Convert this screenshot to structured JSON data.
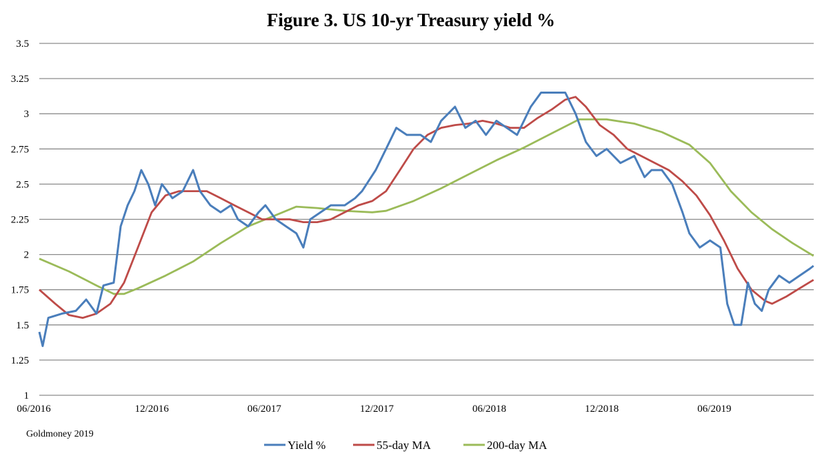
{
  "chart_data": {
    "type": "line",
    "title": "Figure 3. US 10-yr Treasury yield %",
    "xlabel": "",
    "ylabel": "",
    "x_units": "months since 06/2016",
    "xlim": [
      0,
      41.3
    ],
    "ylim": [
      1,
      3.5
    ],
    "yticks": [
      1,
      1.25,
      1.5,
      1.75,
      2,
      2.25,
      2.5,
      2.75,
      3,
      3.25,
      3.5
    ],
    "ytick_labels": [
      "1",
      "1.25",
      "1.5",
      "1.75",
      "2",
      "2.25",
      "2.5",
      "2.75",
      "3",
      "3.25",
      "3.5"
    ],
    "xticks": [
      0,
      6,
      12,
      18,
      24,
      30,
      36
    ],
    "xtick_labels": [
      "06/2016",
      "12/2016",
      "06/2017",
      "12/2017",
      "06/2018",
      "12/2018",
      "06/2019"
    ],
    "grid": "horizontal",
    "legend_position": "bottom-center",
    "source": "Goldmoney 2019",
    "series": [
      {
        "name": "Yield %",
        "color": "#4a7ebb",
        "points": [
          [
            0,
            1.45
          ],
          [
            0.18,
            1.35
          ],
          [
            0.48,
            1.55
          ],
          [
            1.21,
            1.58
          ],
          [
            1.95,
            1.6
          ],
          [
            2.5,
            1.68
          ],
          [
            3.05,
            1.58
          ],
          [
            3.42,
            1.78
          ],
          [
            3.97,
            1.8
          ],
          [
            4.34,
            2.2
          ],
          [
            4.71,
            2.35
          ],
          [
            5.07,
            2.45
          ],
          [
            5.44,
            2.6
          ],
          [
            5.81,
            2.5
          ],
          [
            6.18,
            2.35
          ],
          [
            6.54,
            2.5
          ],
          [
            7.1,
            2.4
          ],
          [
            7.65,
            2.45
          ],
          [
            8.2,
            2.6
          ],
          [
            8.57,
            2.45
          ],
          [
            9.12,
            2.35
          ],
          [
            9.67,
            2.3
          ],
          [
            10.22,
            2.35
          ],
          [
            10.59,
            2.25
          ],
          [
            11.14,
            2.2
          ],
          [
            11.69,
            2.3
          ],
          [
            12.06,
            2.35
          ],
          [
            12.61,
            2.25
          ],
          [
            13.16,
            2.2
          ],
          [
            13.71,
            2.15
          ],
          [
            14.08,
            2.05
          ],
          [
            14.45,
            2.25
          ],
          [
            15.0,
            2.3
          ],
          [
            15.55,
            2.35
          ],
          [
            16.29,
            2.35
          ],
          [
            16.84,
            2.4
          ],
          [
            17.21,
            2.45
          ],
          [
            17.94,
            2.6
          ],
          [
            18.49,
            2.75
          ],
          [
            19.04,
            2.9
          ],
          [
            19.6,
            2.85
          ],
          [
            20.33,
            2.85
          ],
          [
            20.88,
            2.8
          ],
          [
            21.43,
            2.95
          ],
          [
            22.17,
            3.05
          ],
          [
            22.72,
            2.9
          ],
          [
            23.27,
            2.95
          ],
          [
            23.82,
            2.85
          ],
          [
            24.38,
            2.95
          ],
          [
            24.93,
            2.9
          ],
          [
            25.48,
            2.85
          ],
          [
            26.21,
            3.05
          ],
          [
            26.76,
            3.15
          ],
          [
            27.32,
            3.15
          ],
          [
            28.05,
            3.15
          ],
          [
            28.6,
            3.0
          ],
          [
            29.15,
            2.8
          ],
          [
            29.71,
            2.7
          ],
          [
            30.26,
            2.75
          ],
          [
            30.99,
            2.65
          ],
          [
            31.73,
            2.7
          ],
          [
            32.28,
            2.55
          ],
          [
            32.65,
            2.6
          ],
          [
            33.2,
            2.6
          ],
          [
            33.75,
            2.5
          ],
          [
            34.3,
            2.3
          ],
          [
            34.67,
            2.15
          ],
          [
            35.22,
            2.05
          ],
          [
            35.77,
            2.1
          ],
          [
            36.32,
            2.05
          ],
          [
            36.69,
            1.65
          ],
          [
            37.06,
            1.5
          ],
          [
            37.43,
            1.5
          ],
          [
            37.79,
            1.8
          ],
          [
            38.16,
            1.65
          ],
          [
            38.53,
            1.6
          ],
          [
            38.9,
            1.75
          ],
          [
            39.45,
            1.85
          ],
          [
            40.0,
            1.8
          ],
          [
            40.55,
            1.85
          ],
          [
            41.1,
            1.9
          ],
          [
            41.29,
            1.92
          ]
        ]
      },
      {
        "name": "55-day MA",
        "color": "#be4b48",
        "points": [
          [
            0,
            1.75
          ],
          [
            0.85,
            1.65
          ],
          [
            1.58,
            1.57
          ],
          [
            2.32,
            1.55
          ],
          [
            3.05,
            1.58
          ],
          [
            3.79,
            1.65
          ],
          [
            4.52,
            1.8
          ],
          [
            5.26,
            2.05
          ],
          [
            5.99,
            2.3
          ],
          [
            6.73,
            2.42
          ],
          [
            7.46,
            2.45
          ],
          [
            8.2,
            2.45
          ],
          [
            8.93,
            2.45
          ],
          [
            9.67,
            2.4
          ],
          [
            10.4,
            2.35
          ],
          [
            11.14,
            2.3
          ],
          [
            11.88,
            2.25
          ],
          [
            12.61,
            2.25
          ],
          [
            13.35,
            2.25
          ],
          [
            14.08,
            2.23
          ],
          [
            14.82,
            2.23
          ],
          [
            15.55,
            2.25
          ],
          [
            16.29,
            2.3
          ],
          [
            17.02,
            2.35
          ],
          [
            17.76,
            2.38
          ],
          [
            18.49,
            2.45
          ],
          [
            19.23,
            2.6
          ],
          [
            19.96,
            2.75
          ],
          [
            20.7,
            2.85
          ],
          [
            21.43,
            2.9
          ],
          [
            22.17,
            2.92
          ],
          [
            22.9,
            2.93
          ],
          [
            23.64,
            2.95
          ],
          [
            24.38,
            2.93
          ],
          [
            25.11,
            2.9
          ],
          [
            25.85,
            2.9
          ],
          [
            26.58,
            2.97
          ],
          [
            27.32,
            3.03
          ],
          [
            28.05,
            3.1
          ],
          [
            28.6,
            3.12
          ],
          [
            29.15,
            3.05
          ],
          [
            29.89,
            2.92
          ],
          [
            30.63,
            2.85
          ],
          [
            31.36,
            2.75
          ],
          [
            32.1,
            2.7
          ],
          [
            32.83,
            2.65
          ],
          [
            33.57,
            2.6
          ],
          [
            34.3,
            2.52
          ],
          [
            35.04,
            2.42
          ],
          [
            35.77,
            2.28
          ],
          [
            36.51,
            2.1
          ],
          [
            37.24,
            1.9
          ],
          [
            37.98,
            1.75
          ],
          [
            38.71,
            1.67
          ],
          [
            39.08,
            1.65
          ],
          [
            39.82,
            1.7
          ],
          [
            40.55,
            1.76
          ],
          [
            41.29,
            1.82
          ]
        ]
      },
      {
        "name": "200-day MA",
        "color": "#9bbb59",
        "points": [
          [
            0,
            1.97
          ],
          [
            1.58,
            1.88
          ],
          [
            3.05,
            1.78
          ],
          [
            3.97,
            1.72
          ],
          [
            4.52,
            1.72
          ],
          [
            5.26,
            1.76
          ],
          [
            6.73,
            1.85
          ],
          [
            8.2,
            1.95
          ],
          [
            9.67,
            2.08
          ],
          [
            11.14,
            2.2
          ],
          [
            12.61,
            2.28
          ],
          [
            13.71,
            2.34
          ],
          [
            14.82,
            2.33
          ],
          [
            16.29,
            2.31
          ],
          [
            17.76,
            2.3
          ],
          [
            18.49,
            2.31
          ],
          [
            19.96,
            2.38
          ],
          [
            21.43,
            2.47
          ],
          [
            22.9,
            2.57
          ],
          [
            24.38,
            2.67
          ],
          [
            25.85,
            2.76
          ],
          [
            27.32,
            2.86
          ],
          [
            28.79,
            2.96
          ],
          [
            30.26,
            2.96
          ],
          [
            31.73,
            2.93
          ],
          [
            33.2,
            2.87
          ],
          [
            34.67,
            2.78
          ],
          [
            35.77,
            2.65
          ],
          [
            36.88,
            2.45
          ],
          [
            37.98,
            2.3
          ],
          [
            39.08,
            2.18
          ],
          [
            40.18,
            2.08
          ],
          [
            41.29,
            1.99
          ]
        ]
      }
    ]
  }
}
